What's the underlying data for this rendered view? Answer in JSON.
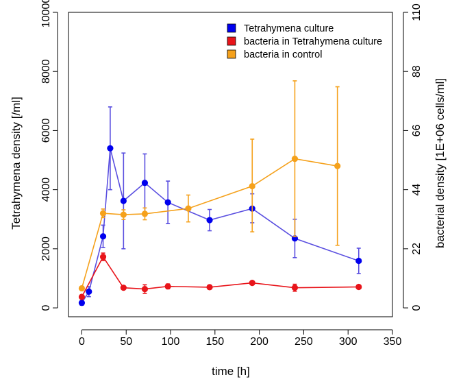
{
  "chart_data": {
    "type": "line",
    "xlabel": "time [h]",
    "ylabel_left": "Tetrahymena density [/ml]",
    "ylabel_right": "bacterial density [1E+06 cells/ml]",
    "xlim": [
      -15,
      350
    ],
    "x_ticks": [
      0,
      50,
      100,
      150,
      200,
      250,
      300,
      350
    ],
    "ylim_left": [
      -300,
      10000
    ],
    "y_ticks_left": [
      0,
      2000,
      4000,
      6000,
      8000,
      10000
    ],
    "ylim_right": [
      -3.3,
      110
    ],
    "y_ticks_right": [
      0,
      22,
      44,
      66,
      88,
      110
    ],
    "grid": false,
    "legend_position": "top-right",
    "series": [
      {
        "name": "Tetrahymena culture",
        "axis": "left",
        "color": "#0000ee",
        "line_color": "#5a4fe0",
        "x": [
          0,
          8,
          24,
          32,
          47,
          71,
          97,
          144,
          192,
          240,
          312
        ],
        "y": [
          170,
          550,
          2420,
          5400,
          3620,
          4230,
          3570,
          2970,
          3360,
          2350,
          1590
        ],
        "err_low": [
          80,
          170,
          380,
          1400,
          1620,
          1000,
          720,
          360,
          480,
          650,
          430
        ],
        "err_high": [
          80,
          170,
          380,
          1400,
          1620,
          980,
          720,
          360,
          500,
          650,
          430
        ]
      },
      {
        "name": "bacteria in Tetrahymena culture",
        "axis": "right",
        "color": "#e8141a",
        "line_color": "#e8141a",
        "x": [
          0,
          24,
          47,
          71,
          97,
          144,
          192,
          240,
          312
        ],
        "y": [
          4.1,
          19.0,
          7.5,
          7.0,
          8.0,
          7.7,
          9.3,
          7.5,
          7.8
        ],
        "err_low": [
          0.3,
          1.4,
          0.4,
          1.6,
          0.9,
          0.4,
          0.5,
          1.3,
          0.3
        ],
        "err_high": [
          0.3,
          1.4,
          0.4,
          1.6,
          0.9,
          0.4,
          0.5,
          1.3,
          0.3
        ]
      },
      {
        "name": "bacteria in control",
        "axis": "right",
        "color": "#f5a11b",
        "line_color": "#f5a11b",
        "x": [
          0,
          24,
          47,
          71,
          120,
          192,
          240,
          288
        ],
        "y": [
          7.3,
          35.2,
          34.7,
          35.0,
          37.0,
          45.3,
          55.5,
          52.8
        ],
        "err_low": [
          0.3,
          1.6,
          1.8,
          2.2,
          5.0,
          17.0,
          29.0,
          29.5
        ],
        "err_high": [
          0.3,
          1.6,
          1.8,
          2.2,
          5.0,
          17.5,
          29.0,
          29.5
        ]
      }
    ]
  }
}
